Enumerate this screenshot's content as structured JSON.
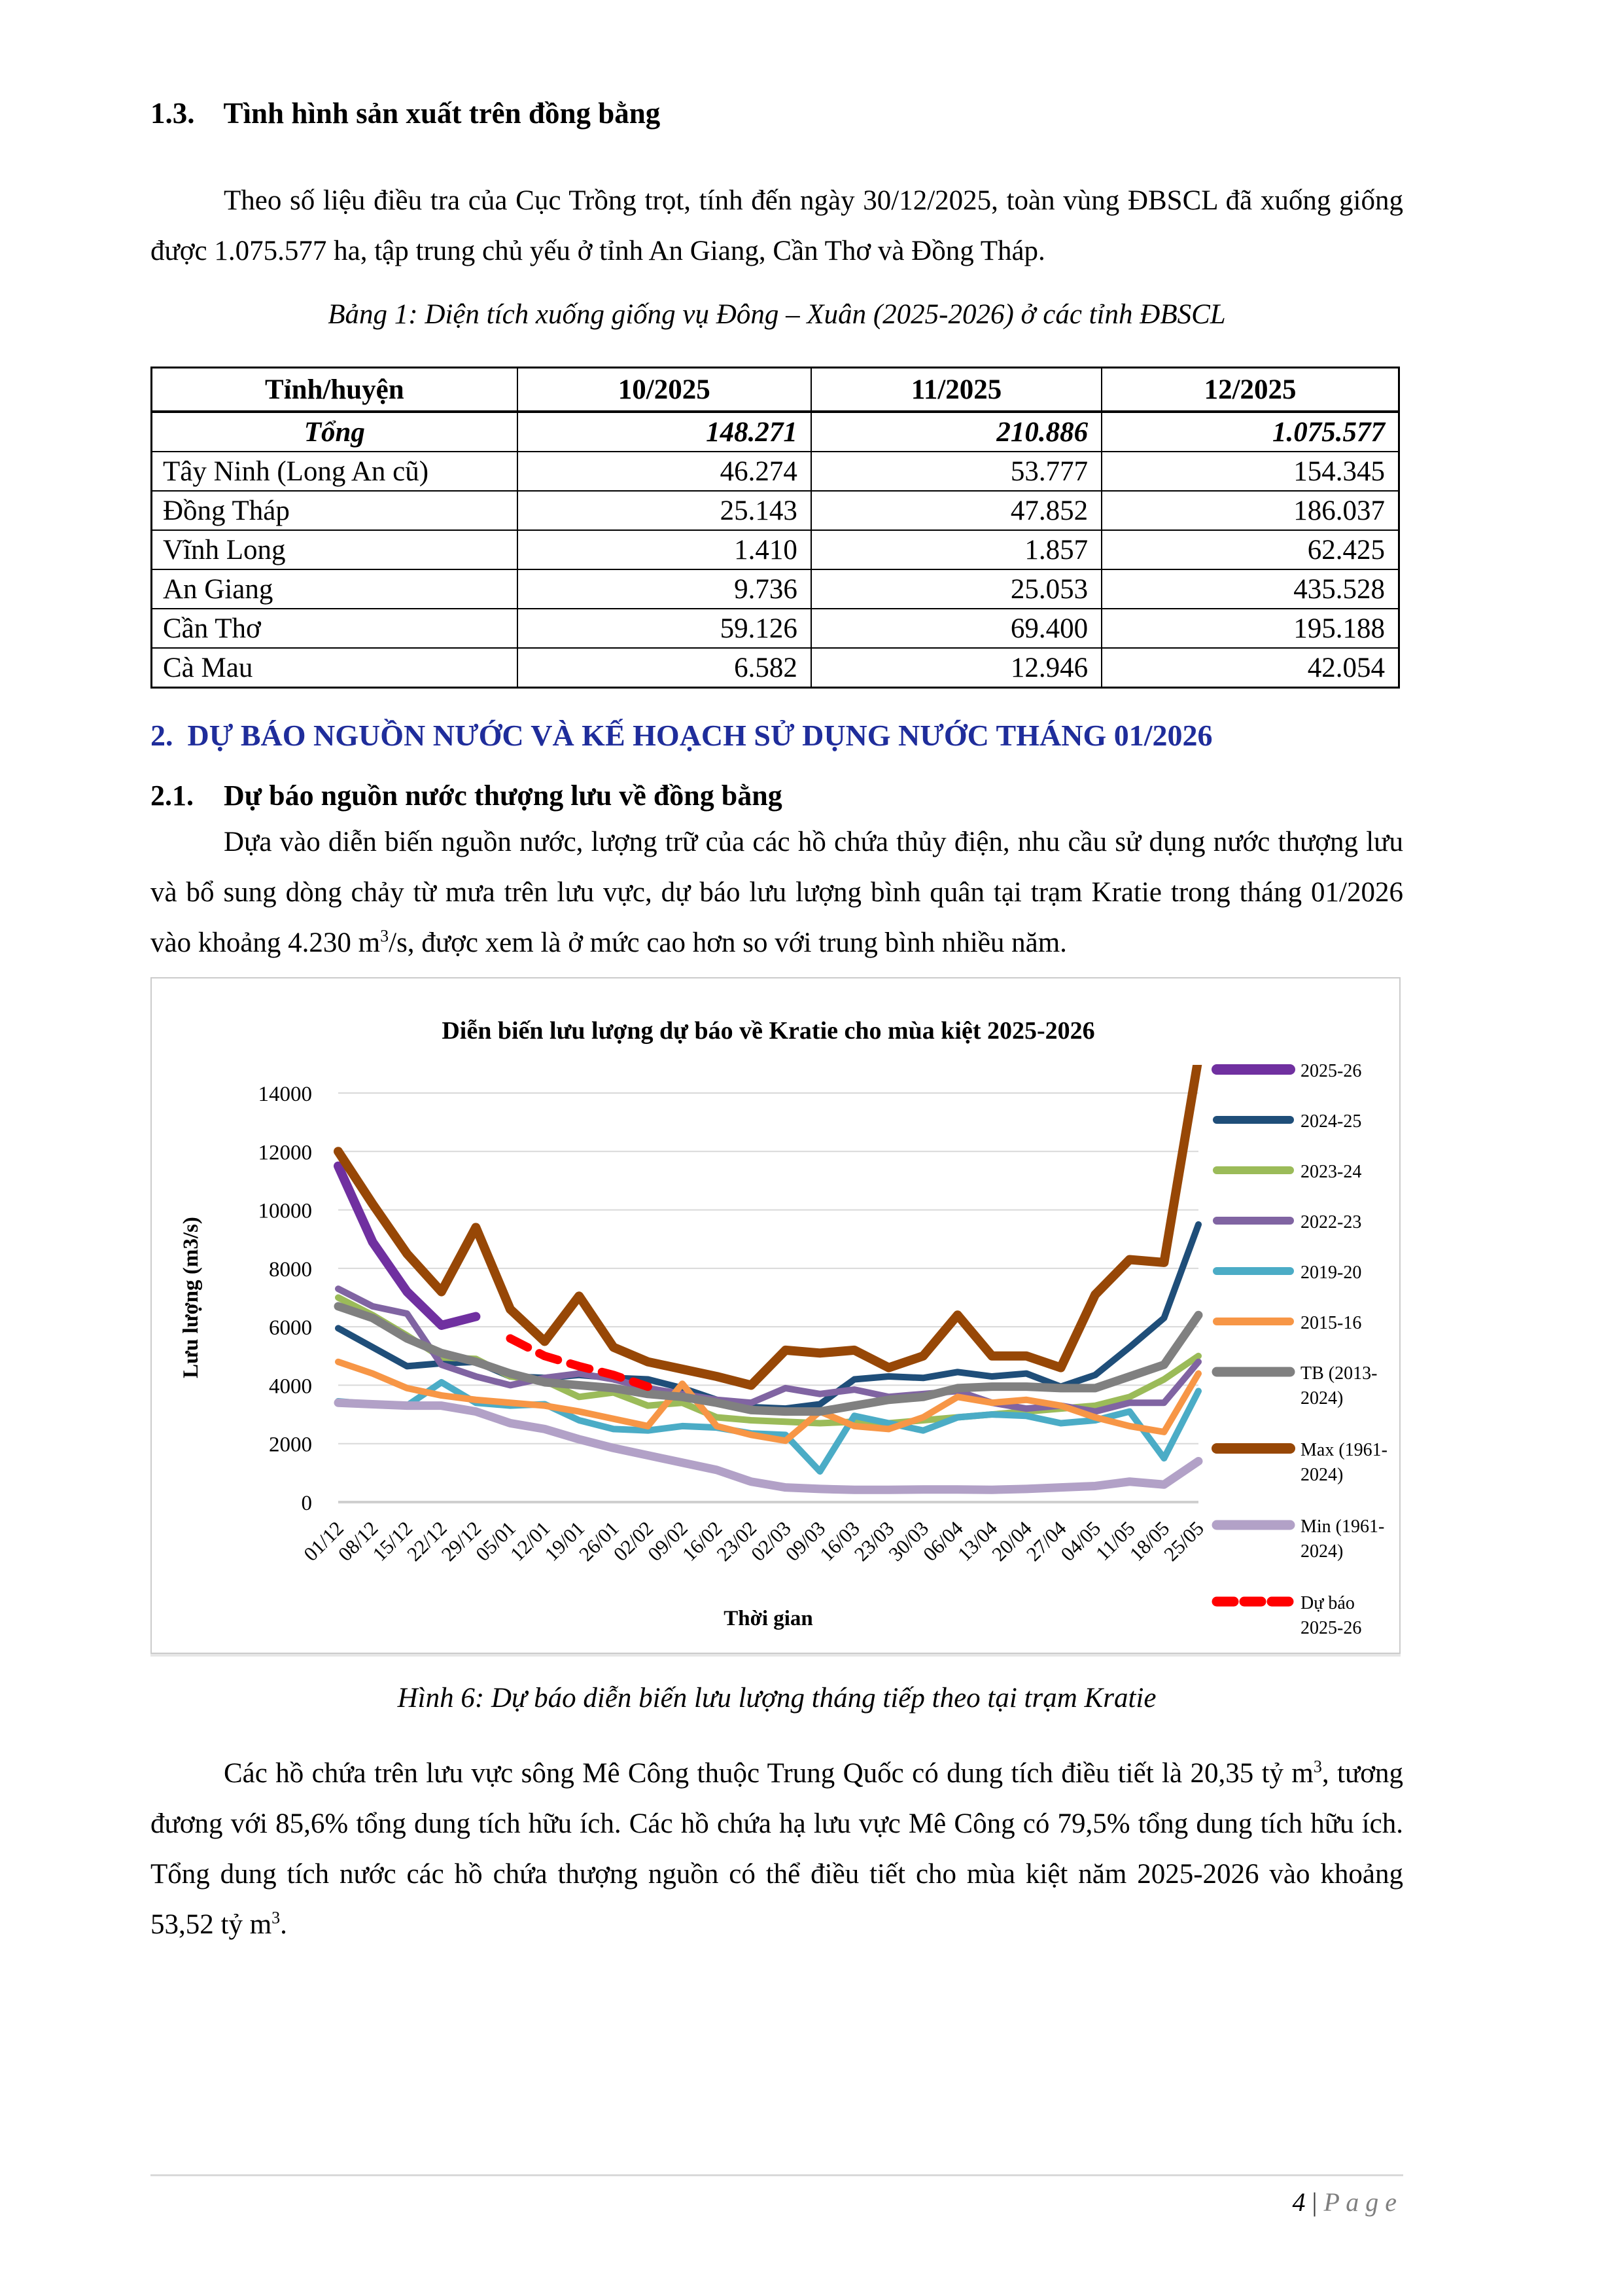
{
  "headings": {
    "h13": {
      "num": "1.3.",
      "text": "Tình hình sản xuất trên đồng bằng"
    },
    "h2": {
      "num": "2.",
      "text": "DỰ BÁO NGUỒN NƯỚC VÀ KẾ HOẠCH SỬ DỤNG NƯỚC THÁNG 01/2026"
    },
    "h21": {
      "num": "2.1.",
      "text": "Dự báo nguồn nước thượng lưu về đồng bằng"
    }
  },
  "paragraphs": {
    "para1": "Theo số liệu điều tra của Cục Trồng trọt, tính đến ngày 30/12/2025, toàn vùng ĐBSCL đã xuống giống được 1.075.577 ha, tập trung chủ yếu ở tỉnh An Giang, Cần Thơ và Đồng Tháp.",
    "para2": {
      "p1": "Dựa vào diễn biến nguồn nước, lượng trữ của các hồ chứa thủy điện, nhu cầu sử dụng nước thượng lưu và bổ sung dòng chảy từ mưa trên lưu vực, dự báo lưu lượng bình quân tại trạm Kratie trong tháng 01/2026 vào khoảng 4.230 m",
      "sup1": "3",
      "p2": "/s, được xem là ở mức cao hơn so với trung bình nhiều năm."
    },
    "para3": {
      "p1": "Các hồ chứa trên lưu vực sông Mê Công thuộc Trung Quốc có dung tích điều tiết là 20,35 tỷ m",
      "sup1": "3",
      "p2": ", tương đương với 85,6% tổng dung tích hữu ích. Các hồ chứa hạ lưu vực Mê Công có 79,5% tổng dung tích hữu ích. Tổng dung tích nước các hồ chứa thượng nguồn có thể điều tiết cho mùa kiệt năm 2025-2026 vào khoảng 53,52 tỷ m",
      "sup2": "3",
      "p3": "."
    }
  },
  "table": {
    "caption": "Bảng 1: Diện tích xuống giống vụ Đông – Xuân (2025-2026) ở các tỉnh ĐBSCL",
    "headers": [
      "Tỉnh/huyện",
      "10/2025",
      "11/2025",
      "12/2025"
    ],
    "total": [
      "Tổng",
      "148.271",
      "210.886",
      "1.075.577"
    ],
    "rows": [
      [
        "Tây Ninh (Long An cũ)",
        "46.274",
        "53.777",
        "154.345"
      ],
      [
        "Đồng Tháp",
        "25.143",
        "47.852",
        "186.037"
      ],
      [
        "Vĩnh Long",
        "1.410",
        "1.857",
        "62.425"
      ],
      [
        "An Giang",
        "9.736",
        "25.053",
        "435.528"
      ],
      [
        "Cần Thơ",
        "59.126",
        "69.400",
        "195.188"
      ],
      [
        "Cà Mau",
        "6.582",
        "12.946",
        "42.054"
      ]
    ]
  },
  "figure_caption": "Hình 6: Dự báo diễn biến lưu lượng tháng tiếp theo tại trạm Kratie",
  "footer": {
    "page_number": "4",
    "separator": "|",
    "label": "P a g e"
  },
  "chart_data": {
    "type": "line",
    "title": "Diễn biến lưu lượng dự báo về Kratie cho mùa kiệt 2025-2026",
    "xlabel": "Thời gian",
    "ylabel": "Lưu lượng (m3/s)",
    "ylim": [
      0,
      14000
    ],
    "yticks": [
      0,
      2000,
      4000,
      6000,
      8000,
      10000,
      12000,
      14000
    ],
    "grid": "horizontal",
    "legend_position": "right",
    "categories": [
      "01/12",
      "08/12",
      "15/12",
      "22/12",
      "29/12",
      "05/01",
      "12/01",
      "19/01",
      "26/01",
      "02/02",
      "09/02",
      "16/02",
      "23/02",
      "02/03",
      "09/03",
      "16/03",
      "23/03",
      "30/03",
      "06/04",
      "13/04",
      "20/04",
      "27/04",
      "04/05",
      "11/05",
      "18/05",
      "25/05"
    ],
    "series": [
      {
        "name": "2025-26",
        "legend": [
          "2025-26"
        ],
        "color": "#7030A0",
        "width": 14,
        "dash": false,
        "values": [
          11500,
          8900,
          7200,
          6050,
          6350,
          null,
          null,
          null,
          null,
          null,
          null,
          null,
          null,
          null,
          null,
          null,
          null,
          null,
          null,
          null,
          null,
          null,
          null,
          null,
          null,
          null
        ]
      },
      {
        "name": "2024-25",
        "legend": [
          "2024-25"
        ],
        "color": "#1F4E79",
        "width": 10,
        "dash": false,
        "values": [
          5950,
          5300,
          4650,
          4750,
          4800,
          4300,
          4250,
          4350,
          4250,
          4200,
          3900,
          3500,
          3250,
          3200,
          3350,
          4200,
          4300,
          4250,
          4450,
          4300,
          4400,
          3950,
          4350,
          5300,
          6300,
          9500
        ]
      },
      {
        "name": "2023-24",
        "legend": [
          "2023-24"
        ],
        "color": "#9BBB59",
        "width": 10,
        "dash": false,
        "values": [
          7000,
          6400,
          5700,
          4950,
          4900,
          4300,
          4150,
          3600,
          3750,
          3300,
          3400,
          2900,
          2800,
          2750,
          2700,
          2750,
          2700,
          2800,
          2900,
          3000,
          3100,
          3200,
          3300,
          3600,
          4200,
          5000
        ]
      },
      {
        "name": "2022-23",
        "legend": [
          "2022-23"
        ],
        "color": "#8064A2",
        "width": 10,
        "dash": false,
        "values": [
          7300,
          6700,
          6450,
          4700,
          4300,
          4000,
          4250,
          4400,
          4200,
          3900,
          3700,
          3500,
          3400,
          3900,
          3700,
          3850,
          3600,
          3700,
          3800,
          3400,
          3200,
          3300,
          3100,
          3400,
          3400,
          4800
        ]
      },
      {
        "name": "2019-20",
        "legend": [
          "2019-20"
        ],
        "color": "#4BACC6",
        "width": 10,
        "dash": false,
        "values": [
          3450,
          3350,
          3300,
          4100,
          3400,
          3300,
          3350,
          2800,
          2500,
          2450,
          2600,
          2550,
          2350,
          2300,
          1050,
          2950,
          2700,
          2450,
          2900,
          3000,
          2950,
          2700,
          2800,
          3100,
          1500,
          3800
        ]
      },
      {
        "name": "2015-16",
        "legend": [
          "2015-16"
        ],
        "color": "#F79646",
        "width": 10,
        "dash": false,
        "values": [
          4800,
          4400,
          3900,
          3650,
          3500,
          3400,
          3300,
          3100,
          2850,
          2600,
          4050,
          2600,
          2300,
          2100,
          3100,
          2600,
          2500,
          2900,
          3600,
          3400,
          3500,
          3300,
          2900,
          2600,
          2400,
          4400
        ]
      },
      {
        "name": "TB (2013-2024)",
        "legend": [
          "TB (2013-",
          "2024)"
        ],
        "color": "#808080",
        "width": 13,
        "dash": false,
        "values": [
          6700,
          6300,
          5600,
          5100,
          4800,
          4400,
          4100,
          4000,
          3900,
          3700,
          3600,
          3400,
          3150,
          3100,
          3100,
          3300,
          3500,
          3600,
          3900,
          3950,
          3950,
          3900,
          3900,
          4300,
          4700,
          6400
        ]
      },
      {
        "name": "Max (1961-2024)",
        "legend": [
          "Max (1961-",
          "2024)"
        ],
        "color": "#974706",
        "width": 14,
        "dash": false,
        "values": [
          12000,
          10200,
          8500,
          7200,
          9400,
          6600,
          5500,
          7050,
          5300,
          4800,
          4550,
          4300,
          4000,
          5200,
          5100,
          5200,
          4600,
          5000,
          6400,
          5000,
          5000,
          4600,
          7100,
          8300,
          8200,
          15200
        ]
      },
      {
        "name": "Min (1961-2024)",
        "legend": [
          "Min (1961-",
          "2024)"
        ],
        "color": "#B2A1C7",
        "width": 13,
        "dash": false,
        "values": [
          3400,
          3350,
          3300,
          3300,
          3100,
          2700,
          2500,
          2150,
          1850,
          1600,
          1350,
          1100,
          700,
          500,
          450,
          420,
          420,
          430,
          430,
          420,
          450,
          500,
          550,
          700,
          600,
          1400
        ]
      },
      {
        "name": "Dự báo 2025-26",
        "legend": [
          "Dự báo",
          "2025-26"
        ],
        "color": "#FF0000",
        "width": 13,
        "dash": true,
        "values": [
          null,
          null,
          null,
          null,
          null,
          5600,
          5000,
          4650,
          4350,
          3950,
          null,
          null,
          null,
          null,
          null,
          null,
          null,
          null,
          null,
          null,
          null,
          null,
          null,
          null,
          null,
          null
        ]
      }
    ]
  }
}
